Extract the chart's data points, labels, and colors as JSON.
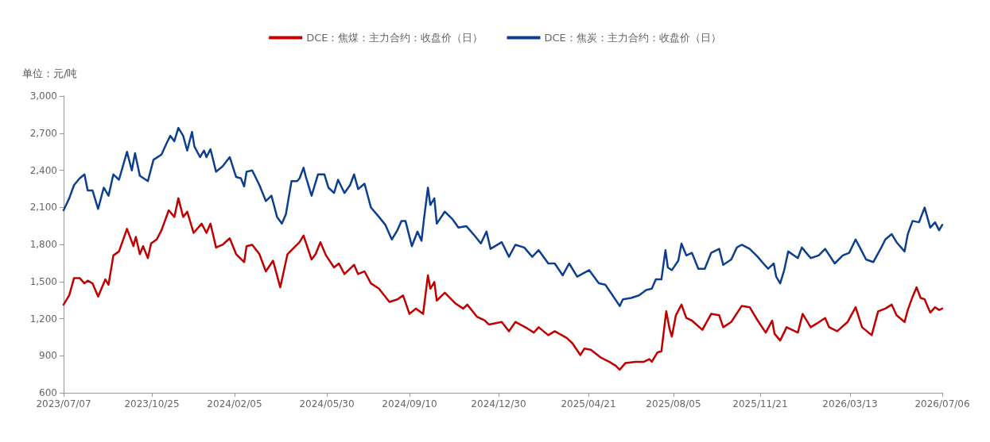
{
  "chart_data": {
    "type": "line",
    "ylabel": "单位：元/吨",
    "legend": "top",
    "grid": false,
    "marker": "none",
    "line_style": "solid",
    "xlim": [
      "2023-07-07",
      "2026-07-06"
    ],
    "xticks": [
      {
        "value": "2023-07-07",
        "label": "2023/07/07"
      },
      {
        "value": "2023-10-25",
        "label": "2023/10/25"
      },
      {
        "value": "2024-02-05",
        "label": "2024/02/05"
      },
      {
        "value": "2024-05-30",
        "label": "2024/05/30"
      },
      {
        "value": "2024-09-10",
        "label": "2024/09/10"
      },
      {
        "value": "2024-12-30",
        "label": "2024/12/30"
      },
      {
        "value": "2025-04-21",
        "label": "2025/04/21"
      },
      {
        "value": "2025-08-05",
        "label": "2025/08/05"
      },
      {
        "value": "2025-11-21",
        "label": "2025/11/21"
      },
      {
        "value": "2026-03-13",
        "label": "2026/03/13"
      },
      {
        "value": "2026-07-06",
        "label": "2026/07/06"
      }
    ],
    "ylim": [
      600,
      3000
    ],
    "yticks": [
      600,
      900,
      {
        "value": 1200,
        "label": "1,200"
      },
      {
        "value": 1500,
        "label": "1,500"
      },
      {
        "value": 1800,
        "label": "1,800"
      },
      {
        "value": 2100,
        "label": "2,100"
      },
      {
        "value": 2400,
        "label": "2,400"
      },
      {
        "value": 2700,
        "label": "2,700"
      },
      {
        "value": 3000,
        "label": "3,000"
      }
    ],
    "series": [
      {
        "name": "DCE：焦煤：主力合约：收盘价（日）",
        "color": "#c00000",
        "x": [
          "2023-07-07",
          "2023-07-14",
          "2023-07-20",
          "2023-07-27",
          "2023-08-02",
          "2023-08-06",
          "2023-08-12",
          "2023-08-19",
          "2023-08-28",
          "2023-09-01",
          "2023-09-07",
          "2023-09-14",
          "2023-09-24",
          "2023-10-02",
          "2023-10-05",
          "2023-10-10",
          "2023-10-14",
          "2023-10-20",
          "2023-10-24",
          "2023-10-31",
          "2023-11-06",
          "2023-11-15",
          "2023-11-22",
          "2023-11-27",
          "2023-12-03",
          "2023-12-08",
          "2023-12-16",
          "2023-12-26",
          "2024-01-01",
          "2024-01-06",
          "2024-01-13",
          "2024-01-21",
          "2024-01-30",
          "2024-02-07",
          "2024-02-17",
          "2024-02-20",
          "2024-02-27",
          "2024-03-07",
          "2024-03-15",
          "2024-03-24",
          "2024-04-02",
          "2024-04-11",
          "2024-04-21",
          "2024-04-26",
          "2024-05-01",
          "2024-05-11",
          "2024-05-16",
          "2024-05-22",
          "2024-05-29",
          "2024-06-08",
          "2024-06-14",
          "2024-06-21",
          "2024-07-03",
          "2024-07-08",
          "2024-07-16",
          "2024-07-24",
          "2024-08-03",
          "2024-08-16",
          "2024-08-26",
          "2024-09-02",
          "2024-09-10",
          "2024-09-18",
          "2024-09-27",
          "2024-10-03",
          "2024-10-06",
          "2024-10-11",
          "2024-10-14",
          "2024-10-24",
          "2024-11-06",
          "2024-11-16",
          "2024-11-21",
          "2024-12-03",
          "2024-12-13",
          "2024-12-18",
          "2025-01-03",
          "2025-01-12",
          "2025-01-20",
          "2025-02-04",
          "2025-02-12",
          "2025-02-18",
          "2025-03-02",
          "2025-03-10",
          "2025-03-25",
          "2025-04-01",
          "2025-04-11",
          "2025-04-16",
          "2025-04-24",
          "2025-05-07",
          "2025-05-17",
          "2025-05-25",
          "2025-05-30",
          "2025-06-06",
          "2025-06-19",
          "2025-06-29",
          "2025-07-06",
          "2025-07-09",
          "2025-07-16",
          "2025-07-21",
          "2025-07-27",
          "2025-07-31",
          "2025-08-03",
          "2025-08-08",
          "2025-08-15",
          "2025-08-21",
          "2025-08-28",
          "2025-09-10",
          "2025-09-21",
          "2025-10-01",
          "2025-10-06",
          "2025-10-16",
          "2025-10-29",
          "2025-11-08",
          "2025-11-18",
          "2025-11-28",
          "2025-12-06",
          "2025-12-09",
          "2025-12-16",
          "2025-12-24",
          "2026-01-07",
          "2026-01-13",
          "2026-01-23",
          "2026-01-31",
          "2026-02-10",
          "2026-02-15",
          "2026-02-25",
          "2026-03-10",
          "2026-03-20",
          "2026-03-28",
          "2026-04-09",
          "2026-04-17",
          "2026-04-26",
          "2026-05-04",
          "2026-05-10",
          "2026-05-20",
          "2026-05-24",
          "2026-05-30",
          "2026-06-04",
          "2026-06-09",
          "2026-06-14",
          "2026-06-21",
          "2026-06-27",
          "2026-07-02",
          "2026-07-06"
        ],
        "values": [
          1313,
          1388,
          1528,
          1528,
          1485,
          1507,
          1485,
          1378,
          1517,
          1474,
          1711,
          1743,
          1926,
          1786,
          1861,
          1721,
          1786,
          1689,
          1808,
          1840,
          1915,
          2076,
          2022,
          2173,
          2022,
          2065,
          1893,
          1968,
          1893,
          1968,
          1775,
          1797,
          1850,
          1721,
          1657,
          1786,
          1797,
          1721,
          1582,
          1668,
          1453,
          1721,
          1786,
          1818,
          1872,
          1678,
          1721,
          1818,
          1711,
          1614,
          1646,
          1560,
          1635,
          1560,
          1582,
          1485,
          1442,
          1335,
          1356,
          1388,
          1238,
          1281,
          1238,
          1550,
          1442,
          1496,
          1346,
          1410,
          1324,
          1281,
          1313,
          1216,
          1184,
          1152,
          1173,
          1098,
          1173,
          1120,
          1087,
          1130,
          1066,
          1098,
          1044,
          1001,
          905,
          958,
          948,
          883,
          851,
          819,
          787,
          840,
          851,
          851,
          872,
          851,
          926,
          937,
          1259,
          1120,
          1055,
          1227,
          1313,
          1205,
          1184,
          1109,
          1238,
          1227,
          1130,
          1173,
          1302,
          1292,
          1184,
          1087,
          1184,
          1077,
          1023,
          1130,
          1087,
          1238,
          1130,
          1162,
          1205,
          1130,
          1098,
          1173,
          1292,
          1130,
          1066,
          1259,
          1281,
          1313,
          1227,
          1173,
          1270,
          1377,
          1453,
          1367,
          1356,
          1249,
          1292,
          1270,
          1281
        ]
      },
      {
        "name": "DCE：焦炭：主力合约：收盘价（日）",
        "color": "#0e3f8f",
        "x": [
          "2023-07-07",
          "2023-07-14",
          "2023-07-20",
          "2023-07-27",
          "2023-08-02",
          "2023-08-06",
          "2023-08-12",
          "2023-08-19",
          "2023-08-26",
          "2023-09-01",
          "2023-09-07",
          "2023-09-14",
          "2023-09-24",
          "2023-09-30",
          "2023-10-04",
          "2023-10-10",
          "2023-10-20",
          "2023-10-27",
          "2023-11-06",
          "2023-11-12",
          "2023-11-17",
          "2023-11-22",
          "2023-11-27",
          "2023-12-03",
          "2023-12-08",
          "2023-12-14",
          "2023-12-17",
          "2023-12-24",
          "2023-12-29",
          "2024-01-01",
          "2024-01-06",
          "2024-01-13",
          "2024-01-21",
          "2024-01-30",
          "2024-02-07",
          "2024-02-13",
          "2024-02-17",
          "2024-02-20",
          "2024-02-27",
          "2024-03-07",
          "2024-03-15",
          "2024-03-22",
          "2024-03-29",
          "2024-04-04",
          "2024-04-09",
          "2024-04-16",
          "2024-04-23",
          "2024-04-26",
          "2024-05-01",
          "2024-05-04",
          "2024-05-11",
          "2024-05-19",
          "2024-05-27",
          "2024-06-01",
          "2024-06-08",
          "2024-06-13",
          "2024-06-21",
          "2024-06-28",
          "2024-07-03",
          "2024-07-08",
          "2024-07-16",
          "2024-07-24",
          "2024-08-03",
          "2024-08-11",
          "2024-08-19",
          "2024-08-26",
          "2024-08-31",
          "2024-09-05",
          "2024-09-13",
          "2024-09-20",
          "2024-09-25",
          "2024-09-28",
          "2024-10-03",
          "2024-10-06",
          "2024-10-11",
          "2024-10-14",
          "2024-10-24",
          "2024-11-03",
          "2024-11-10",
          "2024-11-20",
          "2024-11-30",
          "2024-12-08",
          "2024-12-15",
          "2024-12-20",
          "2025-01-03",
          "2025-01-12",
          "2025-01-20",
          "2025-01-31",
          "2025-02-10",
          "2025-02-18",
          "2025-03-02",
          "2025-03-10",
          "2025-03-20",
          "2025-03-28",
          "2025-04-07",
          "2025-04-22",
          "2025-05-04",
          "2025-05-12",
          "2025-05-20",
          "2025-05-30",
          "2025-06-03",
          "2025-06-13",
          "2025-06-23",
          "2025-07-02",
          "2025-07-09",
          "2025-07-14",
          "2025-07-21",
          "2025-07-26",
          "2025-07-29",
          "2025-08-03",
          "2025-08-11",
          "2025-08-15",
          "2025-08-21",
          "2025-08-28",
          "2025-09-05",
          "2025-09-13",
          "2025-09-21",
          "2025-10-01",
          "2025-10-06",
          "2025-10-16",
          "2025-10-23",
          "2025-10-29",
          "2025-11-08",
          "2025-11-18",
          "2025-11-25",
          "2025-12-01",
          "2025-12-08",
          "2025-12-11",
          "2025-12-16",
          "2025-12-21",
          "2025-12-26",
          "2026-01-07",
          "2026-01-12",
          "2026-01-23",
          "2026-02-02",
          "2026-02-10",
          "2026-02-22",
          "2026-03-04",
          "2026-03-12",
          "2026-03-20",
          "2026-03-27",
          "2026-04-02",
          "2026-04-11",
          "2026-04-21",
          "2026-04-26",
          "2026-05-04",
          "2026-05-10",
          "2026-05-20",
          "2026-05-24",
          "2026-05-30",
          "2026-06-07",
          "2026-06-14",
          "2026-06-21",
          "2026-06-27",
          "2026-07-02",
          "2026-07-06"
        ],
        "values": [
          2076,
          2173,
          2280,
          2334,
          2366,
          2237,
          2237,
          2087,
          2259,
          2194,
          2366,
          2323,
          2549,
          2398,
          2538,
          2355,
          2312,
          2484,
          2527,
          2613,
          2678,
          2635,
          2742,
          2678,
          2559,
          2710,
          2592,
          2506,
          2559,
          2506,
          2570,
          2388,
          2431,
          2506,
          2345,
          2334,
          2269,
          2388,
          2398,
          2280,
          2151,
          2194,
          2022,
          1968,
          2044,
          2312,
          2312,
          2334,
          2420,
          2345,
          2194,
          2366,
          2366,
          2259,
          2216,
          2323,
          2216,
          2280,
          2366,
          2248,
          2291,
          2098,
          2022,
          1958,
          1840,
          1915,
          1990,
          1990,
          1786,
          1904,
          1829,
          2001,
          2259,
          2119,
          2173,
          1968,
          2065,
          2001,
          1936,
          1947,
          1872,
          1808,
          1904,
          1764,
          1818,
          1700,
          1797,
          1775,
          1700,
          1754,
          1646,
          1646,
          1550,
          1646,
          1539,
          1592,
          1485,
          1474,
          1399,
          1302,
          1356,
          1367,
          1388,
          1431,
          1442,
          1517,
          1517,
          1754,
          1614,
          1592,
          1668,
          1807,
          1711,
          1732,
          1603,
          1603,
          1732,
          1764,
          1635,
          1678,
          1775,
          1797,
          1764,
          1700,
          1646,
          1603,
          1646,
          1539,
          1485,
          1592,
          1743,
          1689,
          1775,
          1689,
          1711,
          1764,
          1646,
          1711,
          1732,
          1840,
          1754,
          1678,
          1657,
          1775,
          1840,
          1883,
          1818,
          1743,
          1883,
          1990,
          1979,
          2098,
          1936,
          1979,
          1915,
          1958
        ]
      }
    ]
  }
}
